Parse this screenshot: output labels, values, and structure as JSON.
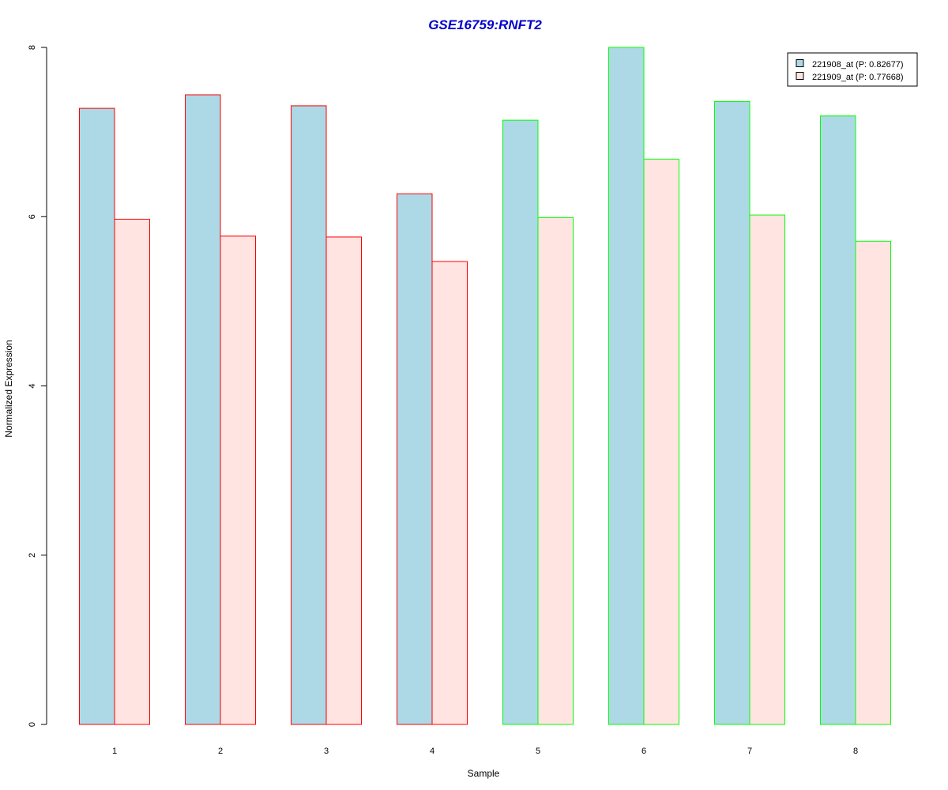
{
  "chart_data": {
    "type": "bar",
    "title": "GSE16759:RNFT2",
    "xlabel": "Sample",
    "ylabel": "Normalized Expression",
    "categories": [
      "1",
      "2",
      "3",
      "4",
      "5",
      "6",
      "7",
      "8"
    ],
    "ylim": [
      0,
      8
    ],
    "yticks": [
      "0",
      "2",
      "4",
      "6",
      "8"
    ],
    "series": [
      {
        "name": "221908_at (P: 0.82677)",
        "fill": "#add8e6",
        "values": [
          7.28,
          7.44,
          7.31,
          6.27,
          7.14,
          8.0,
          7.36,
          7.19
        ]
      },
      {
        "name": "221909_at (P: 0.77668)",
        "fill": "#ffe4e1",
        "values": [
          5.97,
          5.77,
          5.76,
          5.47,
          5.99,
          6.68,
          6.02,
          5.71
        ]
      }
    ],
    "group_border_colors": [
      "#ff0000",
      "#ff0000",
      "#ff0000",
      "#ff0000",
      "#00ff00",
      "#00ff00",
      "#00ff00",
      "#00ff00"
    ],
    "title_color": "#0000cd",
    "legend_position": "top-right",
    "grid": false
  }
}
